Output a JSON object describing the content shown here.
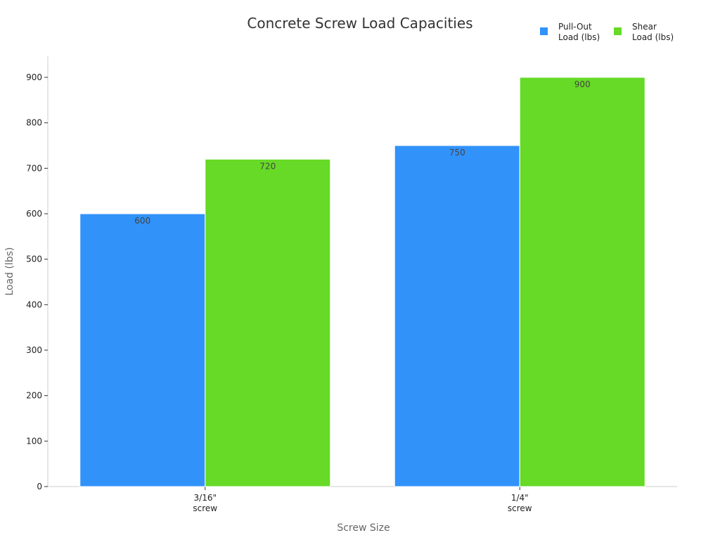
{
  "chart_data": {
    "type": "bar",
    "title": "Concrete Screw Load Capacities",
    "xlabel": "Screw Size",
    "ylabel": "Load (lbs)",
    "categories": [
      [
        "3/16\"",
        "screw"
      ],
      [
        "1/4\"",
        "screw"
      ]
    ],
    "series": [
      {
        "name": [
          "Pull-Out",
          "Load (lbs)"
        ],
        "values": [
          600,
          750
        ],
        "color": "#3192FA"
      },
      {
        "name": [
          "Shear",
          "Load (lbs)"
        ],
        "values": [
          720,
          900
        ],
        "color": "#66DA26"
      }
    ],
    "ylim": [
      0,
      950
    ],
    "yticks": [
      0,
      100,
      200,
      300,
      400,
      500,
      600,
      700,
      800,
      900
    ],
    "grid": false,
    "legend_position": "top-right"
  }
}
